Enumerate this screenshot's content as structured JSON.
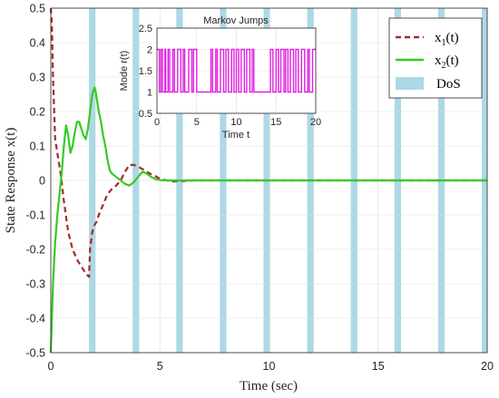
{
  "chart_data": [
    {
      "type": "line",
      "title": "",
      "xlabel": "Time (sec)",
      "ylabel": "State Response x(t)",
      "xlim": [
        0,
        20
      ],
      "ylim": [
        -0.5,
        0.5
      ],
      "xticks": [
        "0",
        "5",
        "10",
        "15",
        "20"
      ],
      "yticks": [
        "-0.5",
        "-0.4",
        "-0.3",
        "-0.2",
        "-0.1",
        "0",
        "0.1",
        "0.2",
        "0.3",
        "0.4",
        "0.5"
      ],
      "grid": true,
      "legend_position": "top-right",
      "dos_intervals": [
        [
          1.75,
          2.05
        ],
        [
          3.75,
          4.05
        ],
        [
          5.75,
          6.05
        ],
        [
          7.75,
          8.05
        ],
        [
          9.75,
          10.05
        ],
        [
          11.75,
          12.05
        ],
        [
          13.75,
          14.05
        ],
        [
          15.75,
          16.05
        ],
        [
          17.75,
          18.05
        ],
        [
          19.75,
          20.0
        ]
      ],
      "dos_color": "#add8e6",
      "legend": [
        {
          "main": "x",
          "sub": "1",
          "suffix": "(t)",
          "color": "#a52a2a",
          "style": "dashed"
        },
        {
          "main": "x",
          "sub": "2",
          "suffix": "(t)",
          "color": "#33cc22",
          "style": "solid"
        },
        {
          "main": "DoS",
          "color": "#add8e6",
          "style": "patch"
        }
      ],
      "series": [
        {
          "color": "#a52a2a",
          "dash": true,
          "x": [
            0,
            0.05,
            0.1,
            0.2,
            0.3,
            0.45,
            0.6,
            0.8,
            1.0,
            1.2,
            1.4,
            1.6,
            1.75,
            1.8,
            1.9,
            2.0,
            2.1,
            2.2,
            2.4,
            2.6,
            2.8,
            3.0,
            3.2,
            3.4,
            3.6,
            3.8,
            4.0,
            4.2,
            4.4,
            4.6,
            4.8,
            5.0,
            5.3,
            5.6,
            6.0,
            6.5,
            7.0,
            8.0,
            9.0,
            10.0,
            11,
            12,
            13,
            14,
            15,
            16,
            17,
            18,
            19,
            20
          ],
          "y": [
            0.5,
            0.45,
            0.3,
            0.12,
            0.08,
            0.02,
            -0.06,
            -0.15,
            -0.2,
            -0.23,
            -0.25,
            -0.27,
            -0.28,
            -0.2,
            -0.15,
            -0.13,
            -0.12,
            -0.1,
            -0.07,
            -0.04,
            -0.025,
            -0.015,
            0.0,
            0.025,
            0.045,
            0.045,
            0.04,
            0.033,
            0.025,
            0.018,
            0.012,
            0.005,
            0.0,
            -0.003,
            -0.002,
            0.0,
            0.0,
            0.0,
            0.0,
            0.0,
            0,
            0,
            0,
            0,
            0,
            0,
            0,
            0,
            0,
            0
          ]
        },
        {
          "color": "#33cc22",
          "dash": false,
          "x": [
            0,
            0.05,
            0.1,
            0.2,
            0.3,
            0.4,
            0.5,
            0.6,
            0.7,
            0.8,
            0.9,
            1.0,
            1.1,
            1.2,
            1.3,
            1.4,
            1.5,
            1.6,
            1.7,
            1.8,
            1.9,
            2.0,
            2.05,
            2.1,
            2.2,
            2.3,
            2.4,
            2.5,
            2.6,
            2.7,
            2.8,
            3.0,
            3.2,
            3.4,
            3.6,
            3.8,
            4.0,
            4.2,
            4.4,
            4.6,
            4.8,
            5.0,
            5.3,
            5.6,
            6.0,
            6.5,
            7.0,
            8.0,
            10,
            12,
            14,
            16,
            18,
            20
          ],
          "y": [
            -0.5,
            -0.4,
            -0.3,
            -0.18,
            -0.1,
            -0.04,
            0.02,
            0.1,
            0.16,
            0.13,
            0.08,
            0.1,
            0.14,
            0.17,
            0.17,
            0.15,
            0.13,
            0.12,
            0.15,
            0.2,
            0.25,
            0.27,
            0.26,
            0.24,
            0.2,
            0.17,
            0.13,
            0.1,
            0.06,
            0.03,
            0.02,
            0.01,
            0.0,
            -0.01,
            -0.015,
            -0.005,
            0.01,
            0.025,
            0.02,
            0.01,
            0.004,
            0.001,
            0.0,
            0.0,
            0.0,
            0.0,
            0.0,
            0.0,
            0,
            0,
            0,
            0,
            0,
            0
          ]
        }
      ]
    },
    {
      "type": "line",
      "title": "Markov Jumps",
      "xlabel": "Time t",
      "ylabel": "Mode r(t)",
      "xlim": [
        0,
        20
      ],
      "ylim": [
        0.5,
        2.5
      ],
      "xticks": [
        "0",
        "5",
        "10",
        "15",
        "20"
      ],
      "yticks": [
        "0.5",
        "1",
        "1.5",
        "2",
        "2.5"
      ],
      "grid": true,
      "series": [
        {
          "color": "#e020e0",
          "step": true,
          "switch_times": [
            0,
            0.3,
            0.5,
            0.7,
            1.0,
            1.1,
            1.4,
            1.6,
            2.0,
            2.2,
            2.6,
            3.0,
            3.3,
            3.5,
            4.0,
            4.4,
            4.6,
            5.0,
            5.3,
            5.8,
            6.2,
            6.5,
            6.8,
            7.0,
            7.4,
            7.6,
            8.0,
            8.4,
            8.7,
            9.0,
            9.4,
            9.7,
            10.0,
            10.3,
            10.6,
            11.0,
            11.3,
            11.7,
            12.0,
            12.2,
            12.6,
            13.0,
            13.4,
            14.0,
            14.3,
            14.6,
            15.0,
            15.3,
            15.6,
            16.0,
            16.2,
            16.5,
            16.8,
            17.2,
            17.5,
            17.8,
            18.2,
            18.6,
            19.0,
            19.2,
            19.6,
            20.0
          ],
          "values": [
            2,
            1,
            2,
            1,
            2,
            1,
            2,
            1,
            2,
            1,
            2,
            1,
            2,
            1,
            2,
            1,
            2,
            1,
            1,
            1,
            1,
            1,
            2,
            1,
            2,
            1,
            2,
            1,
            2,
            1,
            2,
            1,
            2,
            1,
            2,
            1,
            2,
            1,
            2,
            1,
            1,
            1,
            1,
            1,
            2,
            1,
            2,
            1,
            2,
            1,
            2,
            1,
            2,
            1,
            2,
            1,
            2,
            1,
            2,
            1,
            2,
            2
          ]
        }
      ]
    }
  ]
}
